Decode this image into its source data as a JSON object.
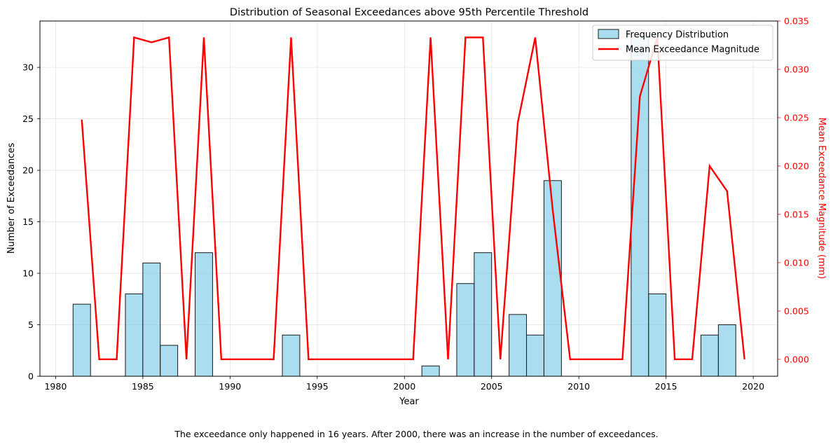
{
  "chart_data": {
    "type": "bar",
    "title": "Distribution of Seasonal Exceedances above 95th Percentile Threshold",
    "xlabel": "Year",
    "ylabel": "Number of Exceedances",
    "y2label": "Mean Exceedance Magnitude (mm)",
    "xlim": [
      1979.1,
      2021.4
    ],
    "ylim": [
      0,
      34.5
    ],
    "y2lim": [
      -0.00175,
      0.035
    ],
    "xticks": [
      1980,
      1985,
      1990,
      1995,
      2000,
      2005,
      2010,
      2015,
      2020
    ],
    "yticks": [
      0,
      5,
      10,
      15,
      20,
      25,
      30
    ],
    "y2ticks": [
      "0.000",
      "0.005",
      "0.010",
      "0.015",
      "0.020",
      "0.025",
      "0.030",
      "0.035"
    ],
    "grid": true,
    "legend_position": "top-right",
    "bar_series": {
      "name": "Frequency Distribution",
      "color": "#87ceeb",
      "edge_color": "#1a1a1a",
      "bins": [
        {
          "start": 1981,
          "count": 7
        },
        {
          "start": 1984,
          "count": 8
        },
        {
          "start": 1985,
          "count": 11
        },
        {
          "start": 1986,
          "count": 3
        },
        {
          "start": 1988,
          "count": 12
        },
        {
          "start": 1993,
          "count": 4
        },
        {
          "start": 2001,
          "count": 1
        },
        {
          "start": 2003,
          "count": 9
        },
        {
          "start": 2004,
          "count": 12
        },
        {
          "start": 2006,
          "count": 6
        },
        {
          "start": 2007,
          "count": 4
        },
        {
          "start": 2008,
          "count": 19
        },
        {
          "start": 2013,
          "count": 33
        },
        {
          "start": 2014,
          "count": 8
        },
        {
          "start": 2017,
          "count": 4
        },
        {
          "start": 2018,
          "count": 5
        }
      ]
    },
    "line_series": {
      "name": "Mean Exceedance Magnitude",
      "color": "#ff0000",
      "x": [
        1981.5,
        1982.5,
        1983.5,
        1984.5,
        1985.5,
        1986.5,
        1987.5,
        1988.5,
        1989.5,
        1990.5,
        1991.5,
        1992.5,
        1993.5,
        1994.5,
        1995.5,
        1996.5,
        1997.5,
        1998.5,
        1999.5,
        2000.5,
        2001.5,
        2002.5,
        2003.5,
        2004.5,
        2005.5,
        2006.5,
        2007.5,
        2008.5,
        2009.5,
        2010.5,
        2011.5,
        2012.5,
        2013.5,
        2014.5,
        2015.5,
        2016.5,
        2017.5,
        2018.5,
        2019.5
      ],
      "y": [
        0.0248,
        0,
        0,
        0.0333,
        0.0328,
        0.0333,
        0,
        0.0333,
        0,
        0,
        0,
        0,
        0.0333,
        0,
        0,
        0,
        0,
        0,
        0,
        0,
        0.0333,
        0,
        0.0333,
        0.0333,
        0,
        0.0245,
        0.0333,
        0.0155,
        0,
        0,
        0,
        0,
        0.0272,
        0.0333,
        0,
        0,
        0.02,
        0.0174,
        0
      ]
    }
  },
  "caption": "The exceedance only happened in 16 years. After 2000, there was an increase in the number of exceedances."
}
